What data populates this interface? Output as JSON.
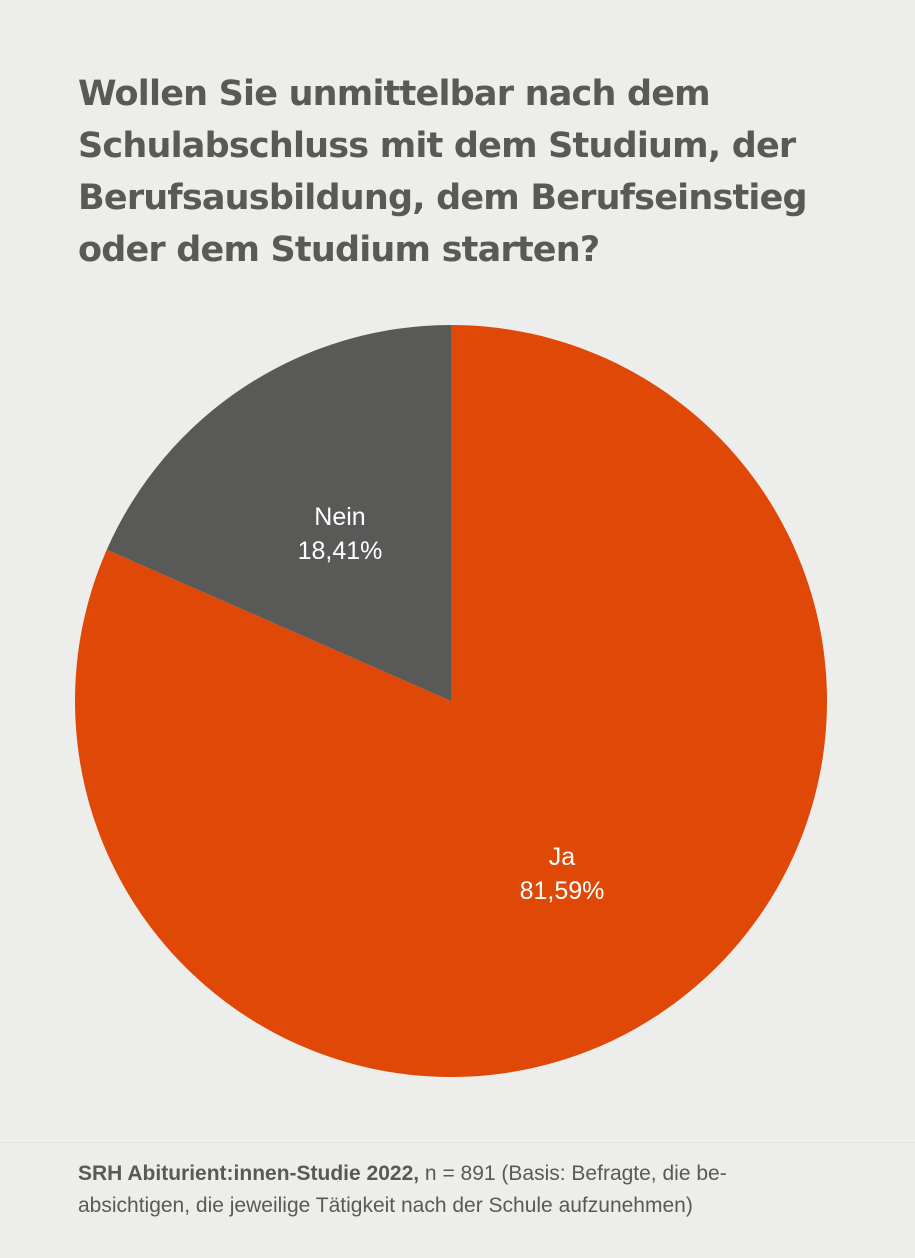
{
  "title": "Wollen Sie unmittelbar nach dem Schulabschluss mit dem Studium, der Berufsausbildung, dem Berufseinstieg oder dem Studium starten?",
  "chart_data": {
    "type": "pie",
    "start_angle_deg": 0,
    "direction": "clockwise",
    "slices": [
      {
        "label": "Ja",
        "value": 81.59,
        "value_label": "81,59%",
        "color": "#df4807"
      },
      {
        "label": "Nein",
        "value": 18.41,
        "value_label": "18,41%",
        "color": "#595957"
      }
    ]
  },
  "footer": {
    "source": "SRH Abiturient:innen-Studie 2022,",
    "note_line1": " n = 891 (Basis: Befragte, die be-",
    "note_line2": "absichtigen, die jeweilige Tätigkeit nach der Schule aufzunehmen)"
  },
  "colors": {
    "background": "#ededeb",
    "text": "#595957",
    "accent": "#df4807"
  }
}
